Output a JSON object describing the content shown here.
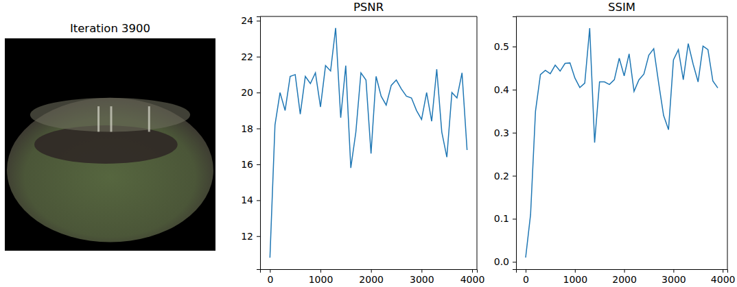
{
  "chart_data": [
    {
      "type": "image",
      "title": "Iteration 3900"
    },
    {
      "type": "line",
      "title": "PSNR",
      "color": "#1f77b4",
      "x": [
        0,
        100,
        200,
        300,
        400,
        500,
        600,
        700,
        800,
        900,
        1000,
        1100,
        1200,
        1300,
        1400,
        1500,
        1600,
        1700,
        1800,
        1900,
        2000,
        2100,
        2200,
        2300,
        2400,
        2500,
        2600,
        2700,
        2800,
        2900,
        3000,
        3100,
        3200,
        3300,
        3400,
        3500,
        3600,
        3700,
        3800,
        3900
      ],
      "values": [
        10.8,
        18.2,
        20.0,
        19.0,
        20.9,
        21.0,
        18.8,
        20.9,
        20.5,
        21.1,
        19.2,
        21.5,
        21.2,
        23.6,
        18.6,
        21.5,
        15.8,
        17.8,
        21.1,
        20.7,
        16.6,
        20.9,
        19.8,
        19.3,
        20.4,
        20.7,
        20.2,
        19.8,
        19.7,
        19.0,
        18.5,
        20.0,
        18.4,
        21.3,
        17.8,
        16.4,
        20.0,
        19.7,
        21.1,
        16.8
      ],
      "xlim": [
        -195,
        4095
      ],
      "xticks": [
        0,
        1000,
        2000,
        3000,
        4000
      ],
      "ylim": [
        10.16,
        24.24
      ],
      "yticks": [
        12,
        14,
        16,
        18,
        20,
        22,
        24
      ]
    },
    {
      "type": "line",
      "title": "SSIM",
      "color": "#1f77b4",
      "x": [
        0,
        100,
        200,
        300,
        400,
        500,
        600,
        700,
        800,
        900,
        1000,
        1100,
        1200,
        1300,
        1400,
        1500,
        1600,
        1700,
        1800,
        1900,
        2000,
        2100,
        2200,
        2300,
        2400,
        2500,
        2600,
        2700,
        2800,
        2900,
        3000,
        3100,
        3200,
        3300,
        3400,
        3500,
        3600,
        3700,
        3800,
        3900
      ],
      "values": [
        0.01,
        0.11,
        0.35,
        0.435,
        0.445,
        0.437,
        0.457,
        0.443,
        0.461,
        0.462,
        0.427,
        0.405,
        0.415,
        0.543,
        0.277,
        0.418,
        0.418,
        0.412,
        0.423,
        0.473,
        0.432,
        0.483,
        0.396,
        0.423,
        0.436,
        0.48,
        0.495,
        0.415,
        0.34,
        0.307,
        0.469,
        0.493,
        0.423,
        0.507,
        0.459,
        0.418,
        0.501,
        0.493,
        0.42,
        0.404
      ],
      "xlim": [
        -195,
        4095
      ],
      "xticks": [
        0,
        1000,
        2000,
        3000,
        4000
      ],
      "ylim": [
        -0.017,
        0.57
      ],
      "yticks": [
        {
          "value": 0,
          "label": "0.0"
        },
        0.1,
        0.2,
        0.3,
        0.4,
        0.5
      ]
    }
  ]
}
